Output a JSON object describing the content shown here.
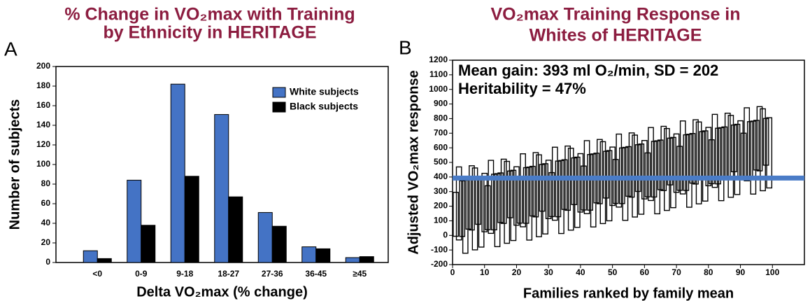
{
  "chart_data": [
    {
      "type": "bar",
      "panel_label": "A",
      "title": [
        "% Change in VO₂max with Training",
        "by Ethnicity in HERITAGE"
      ],
      "x_label": "Delta VO₂max (% change)",
      "y_label": "Number of subjects",
      "categories": [
        "<0",
        "0-9",
        "9-18",
        "18-27",
        "27-36",
        "36-45",
        "≥45"
      ],
      "series": [
        {
          "name": "White subjects",
          "color": "#4473c5",
          "values": [
            12,
            84,
            182,
            151,
            51,
            16,
            5
          ]
        },
        {
          "name": "Black subjects",
          "color": "#000000",
          "values": [
            4,
            38,
            88,
            67,
            37,
            14,
            6
          ]
        }
      ],
      "ylim": [
        0,
        200
      ],
      "yticks": [
        0,
        20,
        40,
        60,
        80,
        100,
        120,
        140,
        160,
        180,
        200
      ],
      "legend": "upper right"
    },
    {
      "type": "range",
      "panel_label": "B",
      "title": [
        "VO₂max Training Response in",
        "Whites of HERITAGE"
      ],
      "x_label": "Families ranked by family mean",
      "y_label": "Adjusted VO₂max response",
      "annotations": [
        "Mean gain: 393 ml O₂/min, SD = 202",
        "Heritability = 47%"
      ],
      "reference_line": {
        "value": 393,
        "color": "#4a7cc7"
      },
      "x": [
        1,
        2,
        3,
        4,
        5,
        6,
        7,
        8,
        9,
        10,
        11,
        12,
        13,
        14,
        15,
        16,
        17,
        18,
        19,
        20,
        21,
        22,
        23,
        24,
        25,
        26,
        27,
        28,
        29,
        30,
        31,
        32,
        33,
        34,
        35,
        36,
        37,
        38,
        39,
        40,
        41,
        42,
        43,
        44,
        45,
        46,
        47,
        48,
        49,
        50,
        51,
        52,
        53,
        54,
        55,
        56,
        57,
        58,
        59,
        60,
        61,
        62,
        63,
        64,
        65,
        66,
        67,
        68,
        69,
        70,
        71,
        72,
        73,
        74,
        75,
        76,
        77,
        78,
        79,
        80,
        81,
        82,
        83,
        84,
        85,
        86,
        87,
        88,
        89,
        90,
        91,
        92,
        93,
        94,
        95,
        96,
        97,
        98,
        99
      ],
      "low": [
        -6,
        -31,
        -7,
        -122,
        43,
        37,
        -99,
        76,
        -80,
        25,
        39,
        14,
        38,
        -77,
        88,
        82,
        -54,
        121,
        -35,
        70,
        84,
        59,
        83,
        -32,
        133,
        127,
        -9,
        166,
        10,
        115,
        129,
        104,
        128,
        13,
        178,
        172,
        36,
        211,
        55,
        160,
        174,
        149,
        173,
        58,
        223,
        217,
        81,
        256,
        100,
        205,
        219,
        194,
        218,
        103,
        268,
        262,
        126,
        301,
        145,
        250,
        264,
        239,
        263,
        148,
        313,
        307,
        171,
        346,
        190,
        295,
        309,
        284,
        308,
        193,
        358,
        352,
        216,
        391,
        235,
        340,
        354,
        329,
        353,
        238,
        403,
        397,
        261,
        436,
        280,
        385,
        399,
        374,
        398,
        283,
        448,
        442,
        306,
        481,
        325
      ],
      "high": [
        295,
        469,
        374,
        378,
        383,
        477,
        462,
        396,
        401,
        425,
        340,
        514,
        419,
        423,
        428,
        522,
        507,
        441,
        446,
        470,
        385,
        559,
        464,
        468,
        473,
        567,
        552,
        486,
        491,
        515,
        430,
        604,
        509,
        513,
        518,
        612,
        597,
        531,
        536,
        560,
        475,
        649,
        554,
        558,
        563,
        657,
        642,
        576,
        581,
        605,
        520,
        694,
        599,
        603,
        608,
        702,
        687,
        621,
        626,
        650,
        565,
        739,
        644,
        648,
        653,
        747,
        732,
        666,
        671,
        695,
        610,
        784,
        689,
        693,
        698,
        792,
        777,
        711,
        716,
        740,
        655,
        829,
        734,
        738,
        743,
        837,
        822,
        756,
        761,
        785,
        700,
        874,
        779,
        783,
        788,
        882,
        867,
        801,
        806
      ],
      "color": "#000000",
      "xlim": [
        0,
        110
      ],
      "xticks": [
        0,
        10,
        20,
        30,
        40,
        50,
        60,
        70,
        80,
        90,
        100
      ],
      "ylim": [
        -200,
        1200
      ],
      "yticks": [
        -200,
        -100,
        0,
        100,
        200,
        300,
        400,
        500,
        600,
        700,
        800,
        900,
        1000,
        1100,
        1200
      ]
    }
  ]
}
